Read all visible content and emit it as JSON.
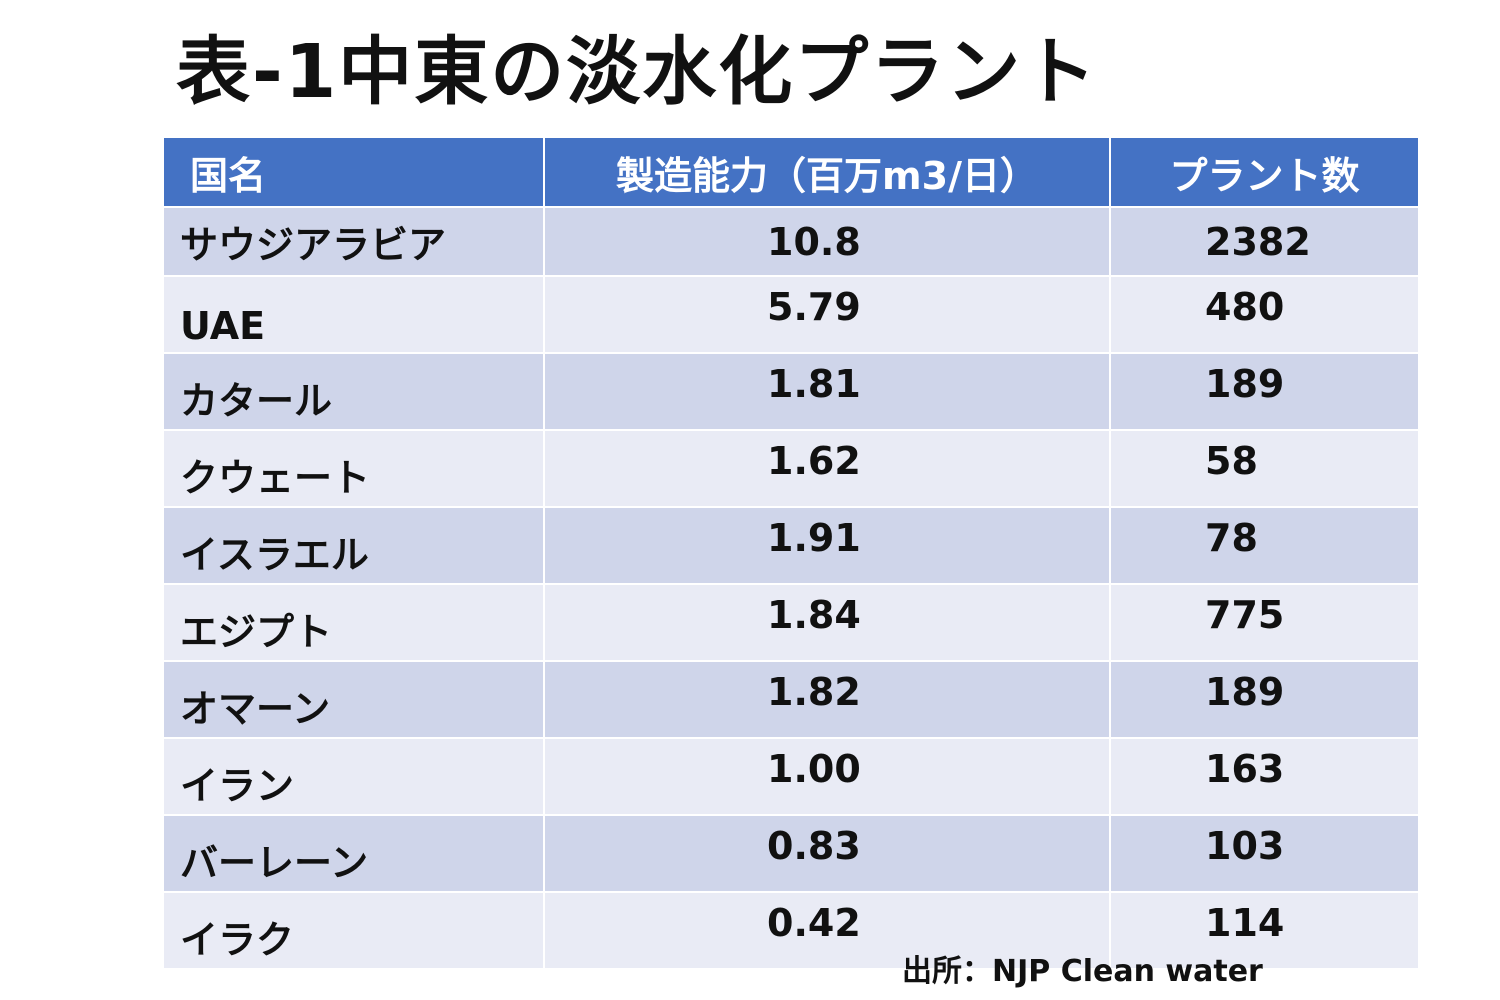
{
  "title": "表-1中東の淡水化プラント",
  "table": {
    "headers": [
      "国名",
      "製造能力（百万m3/日）",
      "プラント数"
    ],
    "rows": [
      {
        "country": "サウジアラビア",
        "capacity": "10.8",
        "plants": "2382"
      },
      {
        "country": "UAE",
        "capacity": "5.79",
        "plants": "480"
      },
      {
        "country": "カタール",
        "capacity": "1.81",
        "plants": "189"
      },
      {
        "country": "クウェート",
        "capacity": "1.62",
        "plants": "58"
      },
      {
        "country": "イスラエル",
        "capacity": "1.91",
        "plants": "78"
      },
      {
        "country": "エジプト",
        "capacity": "1.84",
        "plants": "775"
      },
      {
        "country": "オマーン",
        "capacity": "1.82",
        "plants": "189"
      },
      {
        "country": "イラン",
        "capacity": "1.00",
        "plants": "163"
      },
      {
        "country": "バーレーン",
        "capacity": "0.83",
        "plants": "103"
      },
      {
        "country": "イラク",
        "capacity": "0.42",
        "plants": "114"
      }
    ]
  },
  "source": "出所：NJP Clean water",
  "colors": {
    "header_bg": "#4472c4",
    "row_odd_bg": "#cfd5ea",
    "row_even_bg": "#e9ebf5"
  }
}
